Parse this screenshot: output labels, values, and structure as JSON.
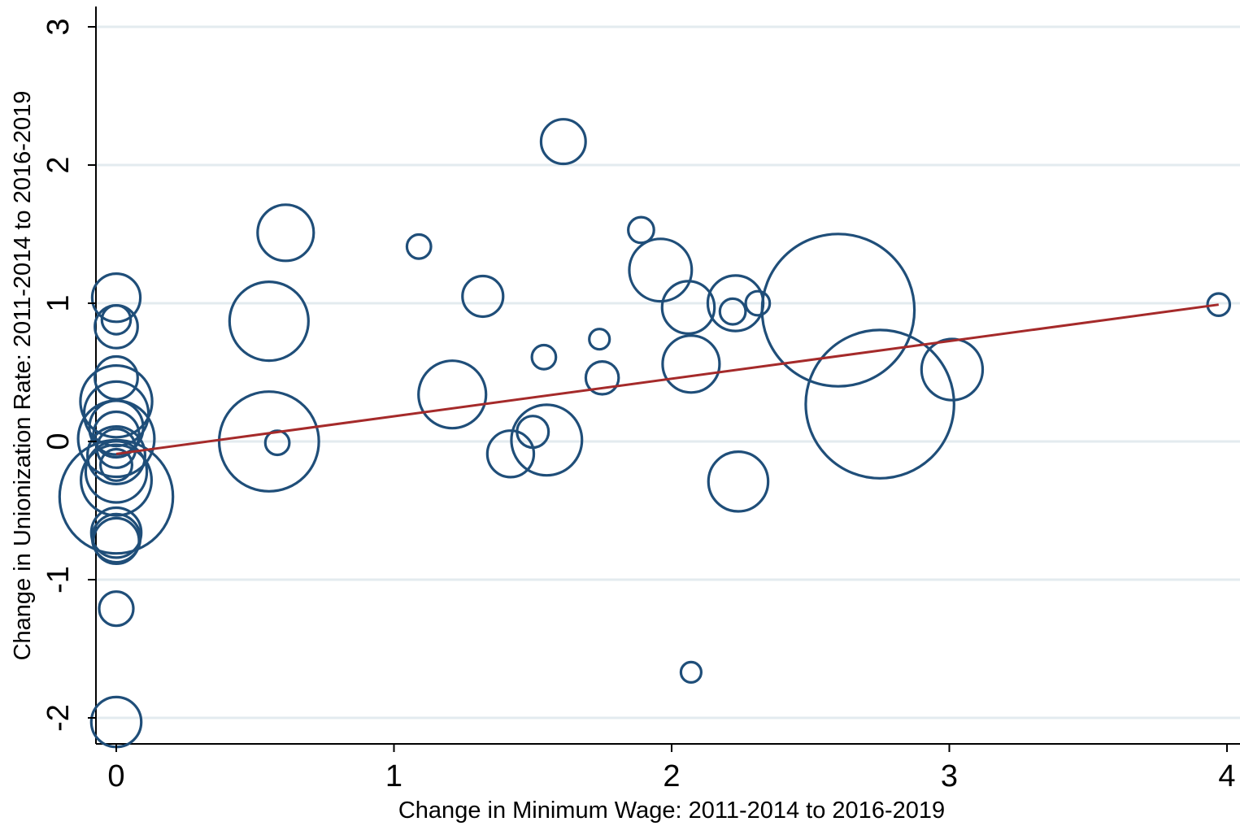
{
  "chart_data": {
    "type": "scatter",
    "title": "",
    "xlabel": "Change in Minimum Wage: 2011-2014 to 2016-2019",
    "ylabel": "Change in Unionization Rate: 2011-2014 to 2016-2019",
    "xlim": [
      -0.08,
      4.05
    ],
    "ylim": [
      -2.2,
      3.15
    ],
    "x_ticks": [
      0,
      1,
      2,
      3,
      4
    ],
    "y_ticks": [
      -2,
      -1,
      0,
      1,
      2,
      3
    ],
    "x_tick_labels": [
      "0",
      "1",
      "2",
      "3",
      "4"
    ],
    "y_tick_labels": [
      "-2",
      "-1",
      "0",
      "1",
      "2",
      "3"
    ],
    "grid": "horizontal",
    "marker": "hollow circle, size weighted",
    "colors": {
      "marker": "#1f4e79",
      "fit_line": "#a52a2a",
      "grid": "#e3ebef"
    },
    "points": [
      {
        "x": 0.0,
        "y": 1.04,
        "w": 0.28
      },
      {
        "x": 0.0,
        "y": 0.83,
        "w": 0.22
      },
      {
        "x": 0.0,
        "y": 0.88,
        "w": 0.1
      },
      {
        "x": 0.0,
        "y": 0.46,
        "w": 0.22
      },
      {
        "x": 0.0,
        "y": 0.29,
        "w": 0.62
      },
      {
        "x": 0.0,
        "y": 0.2,
        "w": 0.5
      },
      {
        "x": 0.0,
        "y": 0.1,
        "w": 0.35
      },
      {
        "x": 0.0,
        "y": 0.05,
        "w": 0.25
      },
      {
        "x": 0.0,
        "y": 0.02,
        "w": 0.7
      },
      {
        "x": 0.0,
        "y": -0.05,
        "w": 0.18
      },
      {
        "x": 0.0,
        "y": -0.1,
        "w": 0.4
      },
      {
        "x": 0.0,
        "y": -0.17,
        "w": 0.12
      },
      {
        "x": 0.0,
        "y": -0.22,
        "w": 0.45
      },
      {
        "x": 0.0,
        "y": -0.28,
        "w": 0.6
      },
      {
        "x": 0.0,
        "y": -0.4,
        "w": 1.55
      },
      {
        "x": 0.0,
        "y": -0.66,
        "w": 0.3
      },
      {
        "x": 0.0,
        "y": -0.7,
        "w": 0.28
      },
      {
        "x": 0.0,
        "y": -0.72,
        "w": 0.25
      },
      {
        "x": 0.0,
        "y": -1.21,
        "w": 0.14
      },
      {
        "x": 0.0,
        "y": -2.03,
        "w": 0.3
      },
      {
        "x": 0.55,
        "y": 0.87,
        "w": 0.75
      },
      {
        "x": 0.55,
        "y": 0.0,
        "w": 1.2
      },
      {
        "x": 0.58,
        "y": -0.01,
        "w": 0.07
      },
      {
        "x": 0.61,
        "y": 1.51,
        "w": 0.38
      },
      {
        "x": 1.09,
        "y": 1.41,
        "w": 0.07
      },
      {
        "x": 1.21,
        "y": 0.34,
        "w": 0.55
      },
      {
        "x": 1.32,
        "y": 1.05,
        "w": 0.2
      },
      {
        "x": 1.42,
        "y": -0.09,
        "w": 0.26
      },
      {
        "x": 1.5,
        "y": 0.07,
        "w": 0.12
      },
      {
        "x": 1.54,
        "y": 0.61,
        "w": 0.07
      },
      {
        "x": 1.55,
        "y": 0.01,
        "w": 0.6
      },
      {
        "x": 1.61,
        "y": 2.17,
        "w": 0.24
      },
      {
        "x": 1.74,
        "y": 0.74,
        "w": 0.05
      },
      {
        "x": 1.75,
        "y": 0.46,
        "w": 0.13
      },
      {
        "x": 1.89,
        "y": 1.53,
        "w": 0.08
      },
      {
        "x": 1.96,
        "y": 1.24,
        "w": 0.47
      },
      {
        "x": 2.06,
        "y": 0.97,
        "w": 0.33
      },
      {
        "x": 2.07,
        "y": 0.56,
        "w": 0.39
      },
      {
        "x": 2.07,
        "y": -1.67,
        "w": 0.05
      },
      {
        "x": 2.22,
        "y": 0.94,
        "w": 0.08
      },
      {
        "x": 2.23,
        "y": 1.0,
        "w": 0.37
      },
      {
        "x": 2.24,
        "y": -0.29,
        "w": 0.43
      },
      {
        "x": 2.31,
        "y": 1.0,
        "w": 0.07
      },
      {
        "x": 2.6,
        "y": 0.95,
        "w": 2.8
      },
      {
        "x": 2.75,
        "y": 0.27,
        "w": 2.65
      },
      {
        "x": 3.01,
        "y": 0.52,
        "w": 0.45
      },
      {
        "x": 3.97,
        "y": 0.99,
        "w": 0.06
      }
    ],
    "fit_line": {
      "x": [
        0.0,
        3.97
      ],
      "y": [
        -0.09,
        0.99
      ]
    }
  }
}
